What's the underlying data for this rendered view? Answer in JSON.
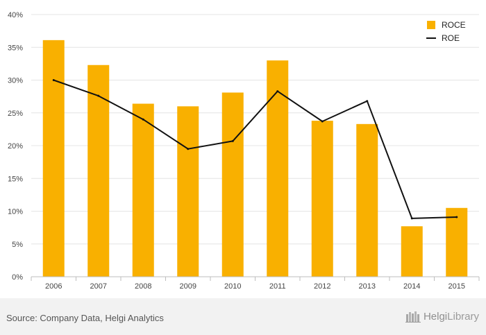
{
  "chart_data": {
    "type": "bar",
    "categories": [
      "2006",
      "2007",
      "2008",
      "2009",
      "2010",
      "2011",
      "2012",
      "2013",
      "2014",
      "2015"
    ],
    "series": [
      {
        "name": "ROCE",
        "type": "bar",
        "color": "#f9b000",
        "values": [
          36.1,
          32.3,
          26.4,
          26.0,
          28.1,
          33.0,
          23.8,
          23.3,
          7.7,
          10.5
        ]
      },
      {
        "name": "ROE",
        "type": "line",
        "color": "#111111",
        "values": [
          30.0,
          27.6,
          24.0,
          19.5,
          20.7,
          28.3,
          23.7,
          26.8,
          8.9,
          9.1
        ]
      }
    ],
    "ylim": [
      0,
      40
    ],
    "y_ticks": [
      0,
      5,
      10,
      15,
      20,
      25,
      30,
      35,
      40
    ],
    "y_tick_format": "percent",
    "grid": true,
    "legend_position": "top-right"
  },
  "footer": {
    "source": "Source: Company Data, Helgi Analytics",
    "logo_text_a": "Helgi",
    "logo_text_b": "Library"
  }
}
